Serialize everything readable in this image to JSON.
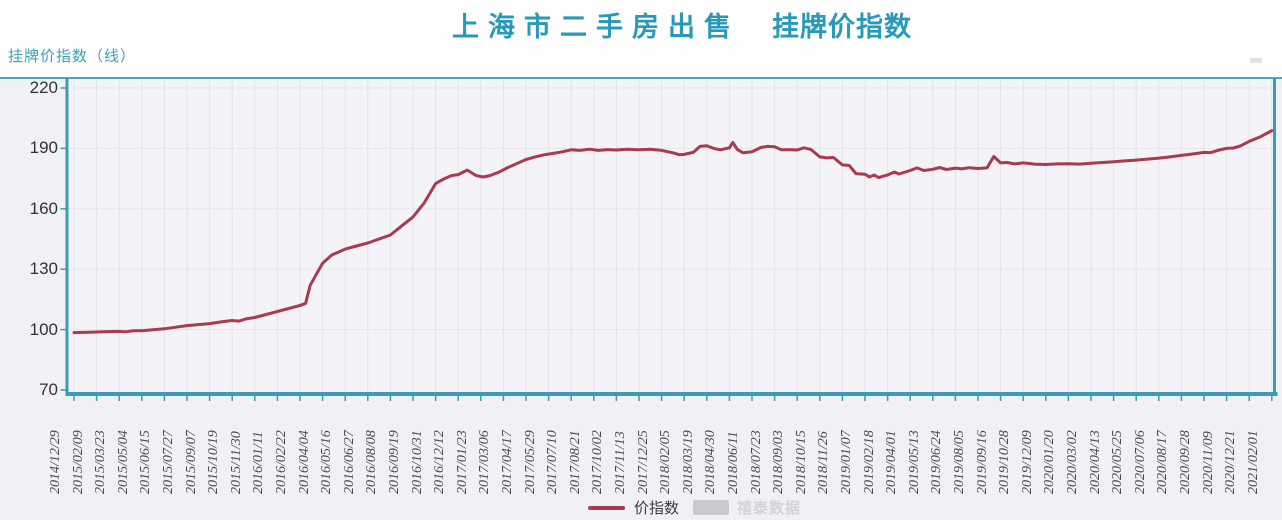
{
  "title": {
    "part1": "上海市二手房出售",
    "part2": "挂牌价指数"
  },
  "y_axis_unit_label": "挂牌价指数（线）",
  "legend": {
    "series_label": "价指数",
    "watermark_label": "禧泰数据"
  },
  "colors": {
    "accent_teal": "#2899b9",
    "axis_teal": "#3a9cb8",
    "line": "#a93a52",
    "plot_bg": "#f4f3f7",
    "grid_vertical": "#e3e2e8",
    "grid_horizontal": "#e6e5ea",
    "tick_label": "#333333",
    "watermark": "#d4d3d8"
  },
  "chart_data": {
    "type": "line",
    "title": "上海市二手房出售 挂牌价指数",
    "xlabel": "",
    "ylabel": "挂牌价指数（线）",
    "ylim": [
      70,
      220
    ],
    "y_ticks": [
      70,
      100,
      130,
      160,
      190,
      220
    ],
    "grid": true,
    "legend_position": "bottom",
    "x_tick_labels": [
      "2014/12/29",
      "2015/02/09",
      "2015/03/23",
      "2015/05/04",
      "2015/06/15",
      "2015/07/27",
      "2015/09/07",
      "2015/10/19",
      "2015/11/30",
      "2016/01/11",
      "2016/02/22",
      "2016/04/04",
      "2016/05/16",
      "2016/06/27",
      "2016/08/08",
      "2016/09/19",
      "2016/10/31",
      "2016/12/12",
      "2017/01/23",
      "2017/03/06",
      "2017/04/17",
      "2017/05/29",
      "2017/07/10",
      "2017/08/21",
      "2017/10/02",
      "2017/11/13",
      "2017/12/25",
      "2018/02/05",
      "2018/03/19",
      "2018/04/30",
      "2018/06/11",
      "2018/07/23",
      "2018/09/03",
      "2018/10/15",
      "2018/11/26",
      "2019/01/07",
      "2019/02/18",
      "2019/04/01",
      "2019/05/13",
      "2019/06/24",
      "2019/08/05",
      "2019/09/16",
      "2019/10/28",
      "2019/12/09",
      "2020/01/20",
      "2020/03/02",
      "2020/04/13",
      "2020/05/25",
      "2020/07/06",
      "2020/08/17",
      "2020/09/28",
      "2020/11/09",
      "2020/12/21",
      "2021/02/01"
    ],
    "series": [
      {
        "name": "价指数",
        "color": "#a93a52",
        "points": [
          [
            0,
            98.5
          ],
          [
            0.5,
            98.6
          ],
          [
            1,
            98.8
          ],
          [
            1.5,
            99.0
          ],
          [
            2,
            99.1
          ],
          [
            2.3,
            98.9
          ],
          [
            2.6,
            99.4
          ],
          [
            3,
            99.4
          ],
          [
            3.5,
            99.9
          ],
          [
            4,
            100.4
          ],
          [
            4.5,
            101.2
          ],
          [
            5,
            102.0
          ],
          [
            5.5,
            102.5
          ],
          [
            6,
            103.0
          ],
          [
            6.5,
            103.8
          ],
          [
            7,
            104.5
          ],
          [
            7.3,
            104.2
          ],
          [
            7.6,
            105.3
          ],
          [
            8,
            106.0
          ],
          [
            8.5,
            107.5
          ],
          [
            9,
            109.0
          ],
          [
            9.5,
            110.5
          ],
          [
            10,
            112.0
          ],
          [
            10.25,
            113.0
          ],
          [
            10.45,
            122.0
          ],
          [
            10.7,
            127.0
          ],
          [
            11,
            133.0
          ],
          [
            11.4,
            137.0
          ],
          [
            12,
            140.0
          ],
          [
            12.5,
            141.5
          ],
          [
            13,
            143.0
          ],
          [
            13.5,
            145.0
          ],
          [
            14,
            147.0
          ],
          [
            14.5,
            151.5
          ],
          [
            15,
            156.0
          ],
          [
            15.5,
            163.0
          ],
          [
            16,
            172.5
          ],
          [
            16.4,
            175.0
          ],
          [
            16.7,
            176.5
          ],
          [
            17,
            177.0
          ],
          [
            17.4,
            179.2
          ],
          [
            17.8,
            176.5
          ],
          [
            18.1,
            175.8
          ],
          [
            18.4,
            176.5
          ],
          [
            18.8,
            178.2
          ],
          [
            19.2,
            180.5
          ],
          [
            19.6,
            182.5
          ],
          [
            20,
            184.5
          ],
          [
            20.4,
            185.8
          ],
          [
            20.8,
            186.8
          ],
          [
            21.2,
            187.5
          ],
          [
            21.6,
            188.3
          ],
          [
            22,
            189.3
          ],
          [
            22.4,
            189.0
          ],
          [
            22.8,
            189.6
          ],
          [
            23.2,
            189.0
          ],
          [
            23.6,
            189.4
          ],
          [
            24,
            189.2
          ],
          [
            24.5,
            189.6
          ],
          [
            25,
            189.3
          ],
          [
            25.5,
            189.6
          ],
          [
            26,
            189.0
          ],
          [
            26.5,
            187.8
          ],
          [
            26.8,
            186.8
          ],
          [
            27,
            187.0
          ],
          [
            27.4,
            188.0
          ],
          [
            27.7,
            191.0
          ],
          [
            28,
            191.3
          ],
          [
            28.3,
            190.0
          ],
          [
            28.6,
            189.3
          ],
          [
            29,
            190.3
          ],
          [
            29.15,
            193.0
          ],
          [
            29.35,
            189.5
          ],
          [
            29.6,
            187.8
          ],
          [
            30,
            188.3
          ],
          [
            30.4,
            190.5
          ],
          [
            30.7,
            191.0
          ],
          [
            31,
            190.8
          ],
          [
            31.3,
            189.3
          ],
          [
            31.6,
            189.4
          ],
          [
            32,
            189.2
          ],
          [
            32.3,
            190.3
          ],
          [
            32.6,
            189.5
          ],
          [
            33,
            185.8
          ],
          [
            33.3,
            185.3
          ],
          [
            33.6,
            185.5
          ],
          [
            34,
            181.8
          ],
          [
            34.3,
            181.5
          ],
          [
            34.6,
            177.5
          ],
          [
            35,
            177.2
          ],
          [
            35.2,
            175.8
          ],
          [
            35.4,
            176.8
          ],
          [
            35.6,
            175.5
          ],
          [
            35.8,
            176.2
          ],
          [
            36,
            176.8
          ],
          [
            36.3,
            178.3
          ],
          [
            36.5,
            177.3
          ],
          [
            37,
            179.0
          ],
          [
            37.3,
            180.3
          ],
          [
            37.6,
            179.0
          ],
          [
            38,
            179.6
          ],
          [
            38.3,
            180.5
          ],
          [
            38.6,
            179.5
          ],
          [
            39,
            180.2
          ],
          [
            39.3,
            179.8
          ],
          [
            39.6,
            180.4
          ],
          [
            40,
            180.0
          ],
          [
            40.4,
            180.3
          ],
          [
            40.7,
            186.0
          ],
          [
            41,
            182.8
          ],
          [
            41.3,
            183.0
          ],
          [
            41.6,
            182.3
          ],
          [
            42,
            182.8
          ],
          [
            42.5,
            182.2
          ],
          [
            43,
            182.0
          ],
          [
            43.5,
            182.3
          ],
          [
            44,
            182.4
          ],
          [
            44.5,
            182.2
          ],
          [
            45,
            182.6
          ],
          [
            45.5,
            183.0
          ],
          [
            46,
            183.4
          ],
          [
            46.5,
            183.8
          ],
          [
            47,
            184.2
          ],
          [
            47.5,
            184.7
          ],
          [
            48,
            185.2
          ],
          [
            48.5,
            185.8
          ],
          [
            49,
            186.5
          ],
          [
            49.5,
            187.2
          ],
          [
            50,
            188.0
          ],
          [
            50.3,
            187.9
          ],
          [
            50.6,
            189.0
          ],
          [
            51,
            190.0
          ],
          [
            51.3,
            190.2
          ],
          [
            51.6,
            191.2
          ],
          [
            52,
            193.5
          ],
          [
            52.5,
            195.8
          ],
          [
            53,
            198.8
          ]
        ]
      }
    ]
  }
}
